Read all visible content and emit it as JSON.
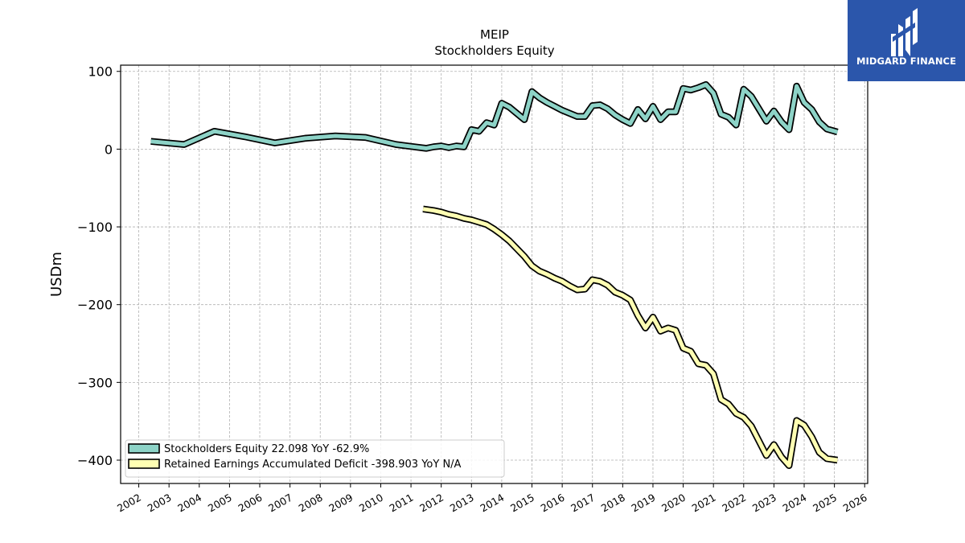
{
  "chart_data": {
    "type": "line",
    "title": "MEIP",
    "subtitle": "Stockholders  Equity",
    "xlabel": "",
    "ylabel": "USDm",
    "xlim": [
      2001.4,
      2026.1
    ],
    "ylim": [
      -430,
      108
    ],
    "x_ticks": [
      "2002",
      "2003",
      "2004",
      "2005",
      "2006",
      "2007",
      "2008",
      "2009",
      "2010",
      "2011",
      "2012",
      "2013",
      "2014",
      "2015",
      "2016",
      "2017",
      "2018",
      "2019",
      "2020",
      "2021",
      "2022",
      "2023",
      "2024",
      "2025",
      "2026"
    ],
    "y_ticks": [
      100,
      0,
      -100,
      -200,
      -300,
      -400
    ],
    "y_tick_labels": [
      "100",
      "0",
      "−100",
      "−200",
      "−300",
      "−400"
    ],
    "grid": true,
    "legend_position": "lower-left",
    "series": [
      {
        "name": "Stockholders Equity",
        "legend_label": "Stockholders Equity  22.098 YoY -62.9%",
        "color": "#8dd3c7",
        "points": [
          [
            2002.4,
            10
          ],
          [
            2003.5,
            6
          ],
          [
            2004.5,
            23
          ],
          [
            2005.5,
            16
          ],
          [
            2006.5,
            8
          ],
          [
            2007.5,
            14
          ],
          [
            2008.5,
            17
          ],
          [
            2009.5,
            15
          ],
          [
            2010.5,
            6
          ],
          [
            2011.5,
            1
          ],
          [
            2011.75,
            3
          ],
          [
            2012.0,
            4
          ],
          [
            2012.25,
            2
          ],
          [
            2012.5,
            4
          ],
          [
            2012.75,
            3
          ],
          [
            2013.0,
            25
          ],
          [
            2013.25,
            23
          ],
          [
            2013.5,
            34
          ],
          [
            2013.75,
            31
          ],
          [
            2014.0,
            59
          ],
          [
            2014.25,
            54
          ],
          [
            2014.5,
            46
          ],
          [
            2014.75,
            38
          ],
          [
            2015.0,
            74
          ],
          [
            2015.25,
            66
          ],
          [
            2015.5,
            60
          ],
          [
            2015.75,
            55
          ],
          [
            2016.0,
            50
          ],
          [
            2016.25,
            46
          ],
          [
            2016.5,
            42
          ],
          [
            2016.75,
            42
          ],
          [
            2017.0,
            56
          ],
          [
            2017.25,
            57
          ],
          [
            2017.5,
            52
          ],
          [
            2017.75,
            44
          ],
          [
            2018.0,
            38
          ],
          [
            2018.25,
            33
          ],
          [
            2018.5,
            51
          ],
          [
            2018.75,
            39
          ],
          [
            2019.0,
            55
          ],
          [
            2019.25,
            38
          ],
          [
            2019.5,
            48
          ],
          [
            2019.75,
            48
          ],
          [
            2020.0,
            78
          ],
          [
            2020.25,
            76
          ],
          [
            2020.5,
            79
          ],
          [
            2020.75,
            83
          ],
          [
            2021.0,
            72
          ],
          [
            2021.25,
            45
          ],
          [
            2021.5,
            41
          ],
          [
            2021.75,
            31
          ],
          [
            2022.0,
            77
          ],
          [
            2022.25,
            68
          ],
          [
            2022.5,
            52
          ],
          [
            2022.75,
            36
          ],
          [
            2023.0,
            49
          ],
          [
            2023.25,
            35
          ],
          [
            2023.5,
            25
          ],
          [
            2023.75,
            81
          ],
          [
            2024.0,
            60
          ],
          [
            2024.25,
            51
          ],
          [
            2024.5,
            35
          ],
          [
            2024.75,
            26
          ],
          [
            2025.1,
            22
          ]
        ]
      },
      {
        "name": "Retained Earnings Accumulated Deficit",
        "legend_label": "Retained Earnings Accumulated Deficit  -398.903 YoY N/A",
        "color": "#ffffb3",
        "points": [
          [
            2011.4,
            -77
          ],
          [
            2011.75,
            -79
          ],
          [
            2012.0,
            -81
          ],
          [
            2012.25,
            -84
          ],
          [
            2012.5,
            -86
          ],
          [
            2012.75,
            -89
          ],
          [
            2013.0,
            -91
          ],
          [
            2013.25,
            -94
          ],
          [
            2013.5,
            -97
          ],
          [
            2013.75,
            -103
          ],
          [
            2014.0,
            -110
          ],
          [
            2014.25,
            -118
          ],
          [
            2014.5,
            -128
          ],
          [
            2014.75,
            -138
          ],
          [
            2015.0,
            -150
          ],
          [
            2015.25,
            -157
          ],
          [
            2015.5,
            -161
          ],
          [
            2015.75,
            -166
          ],
          [
            2016.0,
            -170
          ],
          [
            2016.25,
            -176
          ],
          [
            2016.5,
            -181
          ],
          [
            2016.75,
            -180
          ],
          [
            2017.0,
            -168
          ],
          [
            2017.25,
            -170
          ],
          [
            2017.5,
            -175
          ],
          [
            2017.75,
            -184
          ],
          [
            2018.0,
            -188
          ],
          [
            2018.25,
            -194
          ],
          [
            2018.5,
            -214
          ],
          [
            2018.75,
            -230
          ],
          [
            2019.0,
            -216
          ],
          [
            2019.25,
            -234
          ],
          [
            2019.5,
            -230
          ],
          [
            2019.75,
            -233
          ],
          [
            2020.0,
            -256
          ],
          [
            2020.25,
            -260
          ],
          [
            2020.5,
            -276
          ],
          [
            2020.75,
            -278
          ],
          [
            2021.0,
            -289
          ],
          [
            2021.25,
            -322
          ],
          [
            2021.5,
            -328
          ],
          [
            2021.75,
            -340
          ],
          [
            2022.0,
            -345
          ],
          [
            2022.25,
            -356
          ],
          [
            2022.5,
            -375
          ],
          [
            2022.75,
            -394
          ],
          [
            2023.0,
            -380
          ],
          [
            2023.25,
            -396
          ],
          [
            2023.5,
            -407
          ],
          [
            2023.75,
            -349
          ],
          [
            2024.0,
            -355
          ],
          [
            2024.25,
            -370
          ],
          [
            2024.5,
            -390
          ],
          [
            2024.75,
            -398
          ],
          [
            2025.1,
            -400
          ]
        ]
      }
    ]
  },
  "logo": {
    "text": "MIDGARD FINANCE",
    "background": "#2b56ab",
    "icon": "midgard-logo-mark"
  }
}
